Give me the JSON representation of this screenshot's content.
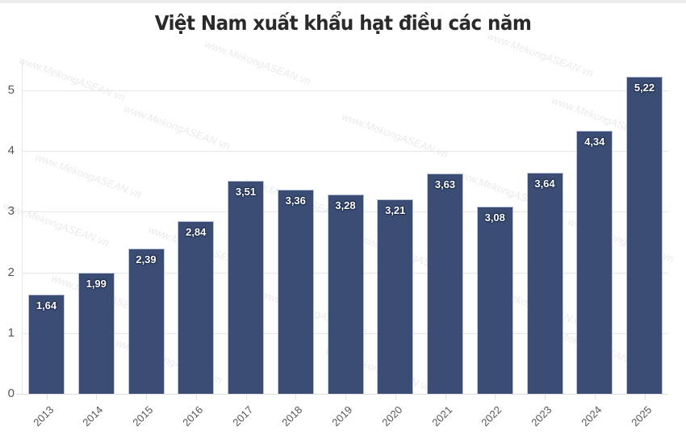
{
  "title": "Việt Nam xuất khẩu hạt điều các năm",
  "watermark": "www.MekongASEAN.vn",
  "colors": {
    "bar": "#3b4d74",
    "bar_border": "#bcc6da",
    "grid": "#e6e6e6",
    "title": "#2a2a2a"
  },
  "y_ticks": [
    "0",
    "1",
    "2",
    "3",
    "4",
    "5"
  ],
  "bars": [
    {
      "year": "2013",
      "label": "1,64"
    },
    {
      "year": "2014",
      "label": "1,99"
    },
    {
      "year": "2015",
      "label": "2,39"
    },
    {
      "year": "2016",
      "label": "2,84"
    },
    {
      "year": "2017",
      "label": "3,51"
    },
    {
      "year": "2018",
      "label": "3,36"
    },
    {
      "year": "2019",
      "label": "3,28"
    },
    {
      "year": "2020",
      "label": "3,21"
    },
    {
      "year": "2021",
      "label": "3,63"
    },
    {
      "year": "2022",
      "label": "3,08"
    },
    {
      "year": "2023",
      "label": "3,64"
    },
    {
      "year": "2024",
      "label": "4,34"
    },
    {
      "year": "2025",
      "label": "5,22"
    }
  ],
  "chart_data": {
    "type": "bar",
    "title": "Việt Nam xuất khẩu hạt điều các năm",
    "xlabel": "",
    "ylabel": "",
    "categories": [
      "2013",
      "2014",
      "2015",
      "2016",
      "2017",
      "2018",
      "2019",
      "2020",
      "2021",
      "2022",
      "2023",
      "2024",
      "2025"
    ],
    "values": [
      1.64,
      1.99,
      2.39,
      2.84,
      3.51,
      3.36,
      3.28,
      3.21,
      3.63,
      3.08,
      3.64,
      4.34,
      5.22
    ],
    "value_labels": [
      "1,64",
      "1,99",
      "2,39",
      "2,84",
      "3,51",
      "3,36",
      "3,28",
      "3,21",
      "3,63",
      "3,08",
      "3,64",
      "4,34",
      "5,22"
    ],
    "ylim": [
      0,
      5.5
    ],
    "y_ticks": [
      0,
      1,
      2,
      3,
      4,
      5
    ],
    "grid": true,
    "legend": "none",
    "x_tick_rotation": -45
  }
}
